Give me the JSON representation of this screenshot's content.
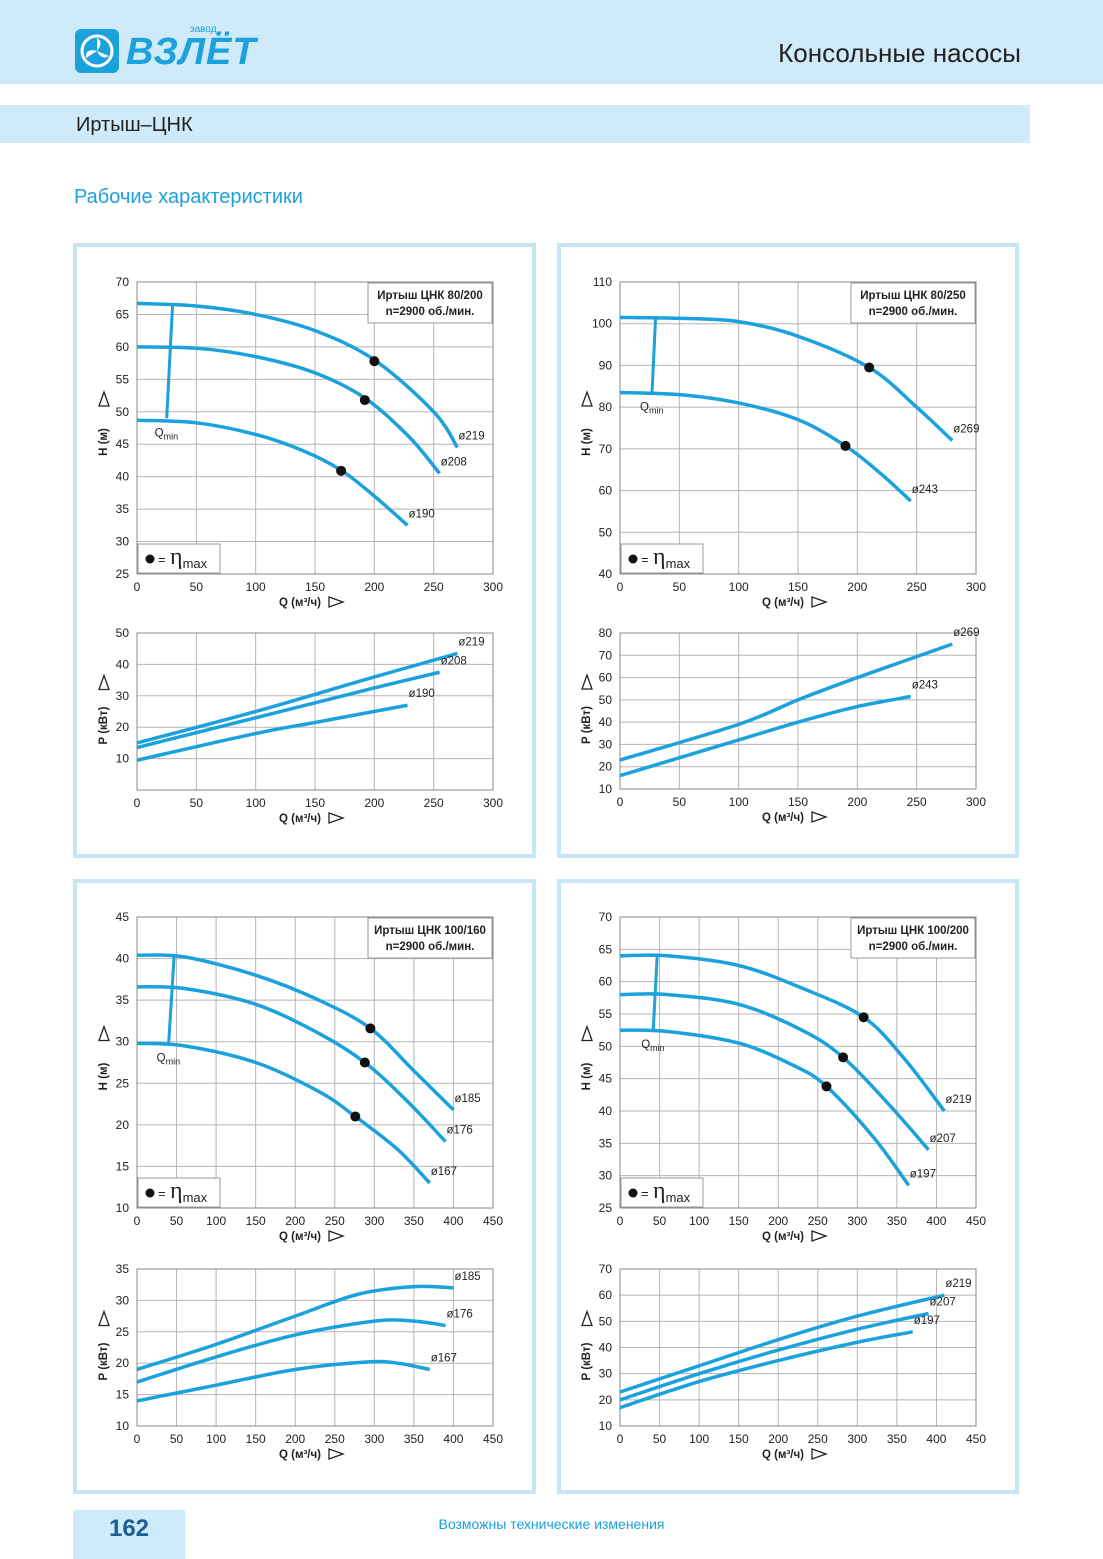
{
  "header": {
    "logo_small": "завод",
    "logo": "ВЗЛЁТ",
    "title": "Консольные насосы"
  },
  "subheader": {
    "title": "Иртыш–ЦНК"
  },
  "section_title": "Рабочие характеристики",
  "footer": {
    "page": "162",
    "note": "Возможны технические изменения"
  },
  "chart_data": [
    {
      "type": "line",
      "title": "Иртыш ЦНК 80/200",
      "subtitle": "n=2900 об./мин.",
      "x_label": "Q (м³/ч)",
      "y_label": "H (м)",
      "xlim": [
        0,
        300
      ],
      "ylim": [
        25,
        70
      ],
      "xticks": [
        0,
        50,
        100,
        150,
        200,
        250,
        300
      ],
      "yticks": [
        25,
        30,
        35,
        40,
        45,
        50,
        55,
        60,
        65,
        70
      ],
      "grid": true,
      "series": [
        {
          "name": "ø219",
          "color": "#1ba1dc",
          "x": [
            0,
            50,
            100,
            150,
            200,
            250,
            270
          ],
          "values": [
            66.7,
            66.3,
            65,
            62.5,
            58,
            50,
            44.5
          ]
        },
        {
          "name": "ø208",
          "color": "#1ba1dc",
          "x": [
            0,
            50,
            100,
            150,
            193,
            230,
            255
          ],
          "values": [
            60,
            59.8,
            58.5,
            56,
            52,
            46,
            40.5
          ]
        },
        {
          "name": "ø190",
          "color": "#1ba1dc",
          "x": [
            0,
            50,
            100,
            140,
            172,
            200,
            228
          ],
          "values": [
            48.7,
            48.3,
            46.5,
            44,
            41,
            37,
            32.5
          ]
        }
      ],
      "eta_max": {
        "x": [
          200,
          192,
          172
        ],
        "values": [
          57.8,
          51.8,
          40.9
        ]
      },
      "qmin": {
        "label": "Q",
        "subscript": "min",
        "x": [
          30,
          25
        ],
        "values": [
          66.5,
          49
        ]
      },
      "legend_label": {
        "text": "=",
        "symbol": "η",
        "subscript": "max"
      }
    },
    {
      "type": "line",
      "x_label": "Q (м³/ч)",
      "y_label": "P (кВт)",
      "xlim": [
        0,
        300
      ],
      "ylim": [
        0,
        50
      ],
      "xticks": [
        0,
        50,
        100,
        150,
        200,
        250,
        300
      ],
      "yticks": [
        10,
        20,
        30,
        40,
        50
      ],
      "grid": true,
      "series": [
        {
          "name": "ø219",
          "color": "#1ba1dc",
          "x": [
            0,
            100,
            200,
            270
          ],
          "values": [
            15,
            25,
            36,
            43.5
          ]
        },
        {
          "name": "ø208",
          "color": "#1ba1dc",
          "x": [
            0,
            100,
            200,
            255
          ],
          "values": [
            13.5,
            23,
            32.5,
            37.5
          ]
        },
        {
          "name": "ø190",
          "color": "#1ba1dc",
          "x": [
            0,
            100,
            150,
            228
          ],
          "values": [
            9.5,
            18,
            21.5,
            27
          ]
        }
      ]
    },
    {
      "type": "line",
      "title": "Иртыш ЦНК 80/250",
      "subtitle": "n=2900 об./мин.",
      "x_label": "Q (м³/ч)",
      "y_label": "H (м)",
      "xlim": [
        0,
        300
      ],
      "ylim": [
        40,
        110
      ],
      "xticks": [
        0,
        50,
        100,
        150,
        200,
        250,
        300
      ],
      "yticks": [
        40,
        50,
        60,
        70,
        80,
        90,
        100,
        110
      ],
      "grid": true,
      "series": [
        {
          "name": "ø269",
          "color": "#1ba1dc",
          "x": [
            0,
            50,
            100,
            150,
            210,
            250,
            280
          ],
          "values": [
            101.5,
            101.3,
            100.5,
            97,
            89.5,
            80,
            72
          ]
        },
        {
          "name": "ø243",
          "color": "#1ba1dc",
          "x": [
            0,
            50,
            100,
            150,
            190,
            220,
            245
          ],
          "values": [
            83.5,
            83,
            81,
            77,
            70.7,
            64,
            57.5
          ]
        }
      ],
      "eta_max": {
        "x": [
          210,
          190
        ],
        "values": [
          89.5,
          70.7
        ]
      },
      "qmin": {
        "label": "Q",
        "subscript": "min",
        "x": [
          30,
          27
        ],
        "values": [
          101.5,
          83.5
        ]
      },
      "legend_label": {
        "text": "=",
        "symbol": "η",
        "subscript": "max"
      }
    },
    {
      "type": "line",
      "x_label": "Q (м³/ч)",
      "y_label": "P (кВт)",
      "xlim": [
        0,
        300
      ],
      "ylim": [
        10,
        80
      ],
      "xticks": [
        0,
        50,
        100,
        150,
        200,
        250,
        300
      ],
      "yticks": [
        10,
        20,
        30,
        40,
        50,
        60,
        70,
        80
      ],
      "grid": true,
      "series": [
        {
          "name": "ø269",
          "color": "#1ba1dc",
          "x": [
            0,
            100,
            150,
            200,
            280
          ],
          "values": [
            23,
            39,
            50,
            60,
            75
          ]
        },
        {
          "name": "ø243",
          "color": "#1ba1dc",
          "x": [
            0,
            100,
            150,
            200,
            245
          ],
          "values": [
            16,
            32,
            40,
            47,
            51.5
          ]
        }
      ]
    },
    {
      "type": "line",
      "title": "Иртыш ЦНК 100/160",
      "subtitle": "n=2900 об./мин.",
      "x_label": "Q (м³/ч)",
      "y_label": "H (м)",
      "xlim": [
        0,
        450
      ],
      "ylim": [
        10,
        45
      ],
      "xticks": [
        0,
        50,
        100,
        150,
        200,
        250,
        300,
        350,
        400,
        450
      ],
      "yticks": [
        10,
        15,
        20,
        25,
        30,
        35,
        40,
        45
      ],
      "grid": true,
      "series": [
        {
          "name": "ø185",
          "color": "#1ba1dc",
          "x": [
            0,
            60,
            150,
            230,
            295,
            350,
            400
          ],
          "values": [
            40.4,
            40.2,
            38,
            35,
            31.6,
            26.5,
            21.8
          ]
        },
        {
          "name": "ø176",
          "color": "#1ba1dc",
          "x": [
            0,
            60,
            150,
            230,
            288,
            340,
            390
          ],
          "values": [
            36.6,
            36.4,
            34.5,
            31,
            27.5,
            23,
            18
          ]
        },
        {
          "name": "ø167",
          "color": "#1ba1dc",
          "x": [
            0,
            60,
            150,
            230,
            276,
            330,
            370
          ],
          "values": [
            29.8,
            29.5,
            27.5,
            24,
            21,
            17,
            13
          ]
        }
      ],
      "eta_max": {
        "x": [
          295,
          288,
          276
        ],
        "values": [
          31.6,
          27.5,
          21
        ]
      },
      "qmin": {
        "label": "Q",
        "subscript": "min",
        "x": [
          47,
          40
        ],
        "values": [
          40.4,
          29.8
        ]
      },
      "legend_label": {
        "text": "=",
        "symbol": "η",
        "subscript": "max"
      }
    },
    {
      "type": "line",
      "x_label": "Q (м³/ч)",
      "y_label": "P (кВт)",
      "xlim": [
        0,
        450
      ],
      "ylim": [
        10,
        35
      ],
      "xticks": [
        0,
        50,
        100,
        150,
        200,
        250,
        300,
        350,
        400,
        450
      ],
      "yticks": [
        10,
        15,
        20,
        25,
        30,
        35
      ],
      "grid": true,
      "series": [
        {
          "name": "ø185",
          "color": "#1ba1dc",
          "x": [
            0,
            100,
            200,
            280,
            350,
            400
          ],
          "values": [
            19,
            23,
            27.5,
            31,
            32.2,
            32
          ]
        },
        {
          "name": "ø176",
          "color": "#1ba1dc",
          "x": [
            0,
            100,
            200,
            300,
            350,
            390
          ],
          "values": [
            17,
            21,
            24.5,
            26.7,
            26.7,
            26
          ]
        },
        {
          "name": "ø167",
          "color": "#1ba1dc",
          "x": [
            0,
            100,
            200,
            290,
            330,
            370
          ],
          "values": [
            14,
            16.5,
            19,
            20.2,
            20,
            19
          ]
        }
      ]
    },
    {
      "type": "line",
      "title": "Иртыш ЦНК 100/200",
      "subtitle": "n=2900 об./мин.",
      "x_label": "Q (м³/ч)",
      "y_label": "H (м)",
      "xlim": [
        0,
        450
      ],
      "ylim": [
        25,
        70
      ],
      "xticks": [
        0,
        50,
        100,
        150,
        200,
        250,
        300,
        350,
        400,
        450
      ],
      "yticks": [
        25,
        30,
        35,
        40,
        45,
        50,
        55,
        60,
        65,
        70
      ],
      "grid": true,
      "series": [
        {
          "name": "ø219",
          "color": "#1ba1dc",
          "x": [
            0,
            60,
            150,
            230,
            308,
            360,
            410
          ],
          "values": [
            64,
            64,
            62.5,
            59,
            54.5,
            48,
            40
          ]
        },
        {
          "name": "ø207",
          "color": "#1ba1dc",
          "x": [
            0,
            60,
            150,
            230,
            282,
            340,
            390
          ],
          "values": [
            58,
            58,
            56.5,
            52.5,
            48.3,
            41,
            34
          ]
        },
        {
          "name": "ø197",
          "color": "#1ba1dc",
          "x": [
            0,
            60,
            150,
            220,
            261,
            320,
            365
          ],
          "values": [
            52.5,
            52.3,
            50.5,
            47,
            43.8,
            36,
            28.5
          ]
        }
      ],
      "eta_max": {
        "x": [
          308,
          282,
          261
        ],
        "values": [
          54.5,
          48.3,
          43.8
        ]
      },
      "qmin": {
        "label": "Q",
        "subscript": "min",
        "x": [
          47,
          42
        ],
        "values": [
          64,
          52.5
        ]
      },
      "legend_label": {
        "text": "=",
        "symbol": "η",
        "subscript": "max"
      }
    },
    {
      "type": "line",
      "x_label": "Q (м³/ч)",
      "y_label": "P (кВт)",
      "xlim": [
        0,
        450
      ],
      "ylim": [
        10,
        70
      ],
      "xticks": [
        0,
        50,
        100,
        150,
        200,
        250,
        300,
        350,
        400,
        450
      ],
      "yticks": [
        10,
        20,
        30,
        40,
        50,
        60,
        70
      ],
      "grid": true,
      "series": [
        {
          "name": "ø219",
          "color": "#1ba1dc",
          "x": [
            0,
            100,
            200,
            300,
            410
          ],
          "values": [
            23,
            33,
            43,
            52,
            60
          ]
        },
        {
          "name": "ø207",
          "color": "#1ba1dc",
          "x": [
            0,
            100,
            200,
            300,
            390
          ],
          "values": [
            20,
            30,
            39,
            47,
            53
          ]
        },
        {
          "name": "ø197",
          "color": "#1ba1dc",
          "x": [
            0,
            100,
            200,
            300,
            370
          ],
          "values": [
            17,
            27,
            35,
            42,
            46
          ]
        }
      ]
    }
  ]
}
